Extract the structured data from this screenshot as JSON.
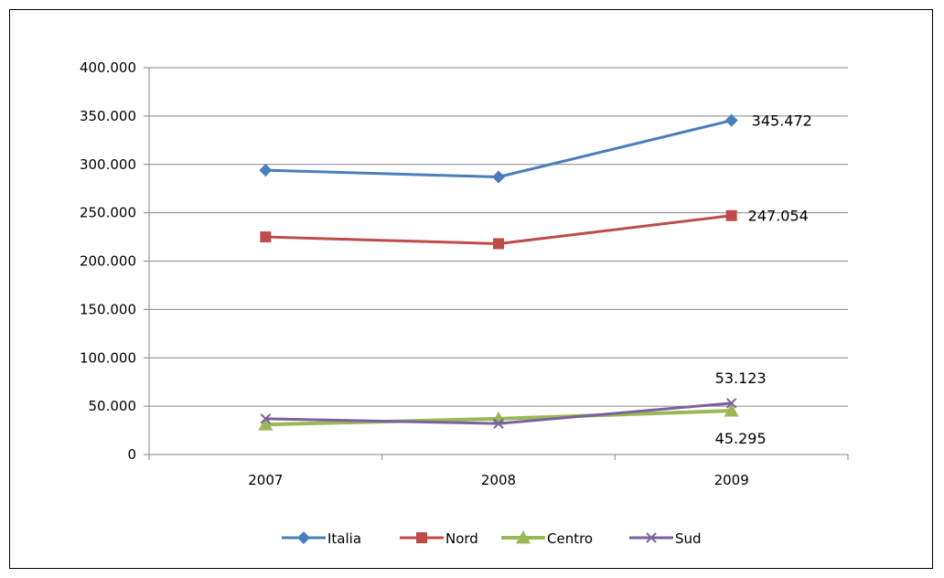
{
  "chart_data": {
    "type": "line",
    "categories": [
      "2007",
      "2008",
      "2009"
    ],
    "ylim": [
      0,
      400000
    ],
    "yticks": [
      0,
      50000,
      100000,
      150000,
      200000,
      250000,
      300000,
      350000,
      400000
    ],
    "ytick_labels": [
      "0",
      "50.000",
      "100.000",
      "150.000",
      "200.000",
      "250.000",
      "300.000",
      "350.000",
      "400.000"
    ],
    "grid": "horizontal",
    "legend_position": "bottom",
    "series": [
      {
        "name": "Italia",
        "values": [
          294000,
          287000,
          345472
        ],
        "color": "#4a7ebb",
        "marker": "diamond"
      },
      {
        "name": "Nord",
        "values": [
          225000,
          218000,
          247054
        ],
        "color": "#be4b48",
        "marker": "square"
      },
      {
        "name": "Centro",
        "values": [
          31000,
          37000,
          45295
        ],
        "color": "#98b954",
        "marker": "triangle"
      },
      {
        "name": "Sud",
        "values": [
          37000,
          32000,
          53123
        ],
        "color": "#7d60a0",
        "marker": "x"
      }
    ],
    "data_labels": [
      {
        "series": "Italia",
        "category": "2009",
        "text": "345.472"
      },
      {
        "series": "Nord",
        "category": "2009",
        "text": "247.054"
      },
      {
        "series": "Sud",
        "category": "2009",
        "text": "53.123"
      },
      {
        "series": "Centro",
        "category": "2009",
        "text": "45.295"
      }
    ]
  }
}
